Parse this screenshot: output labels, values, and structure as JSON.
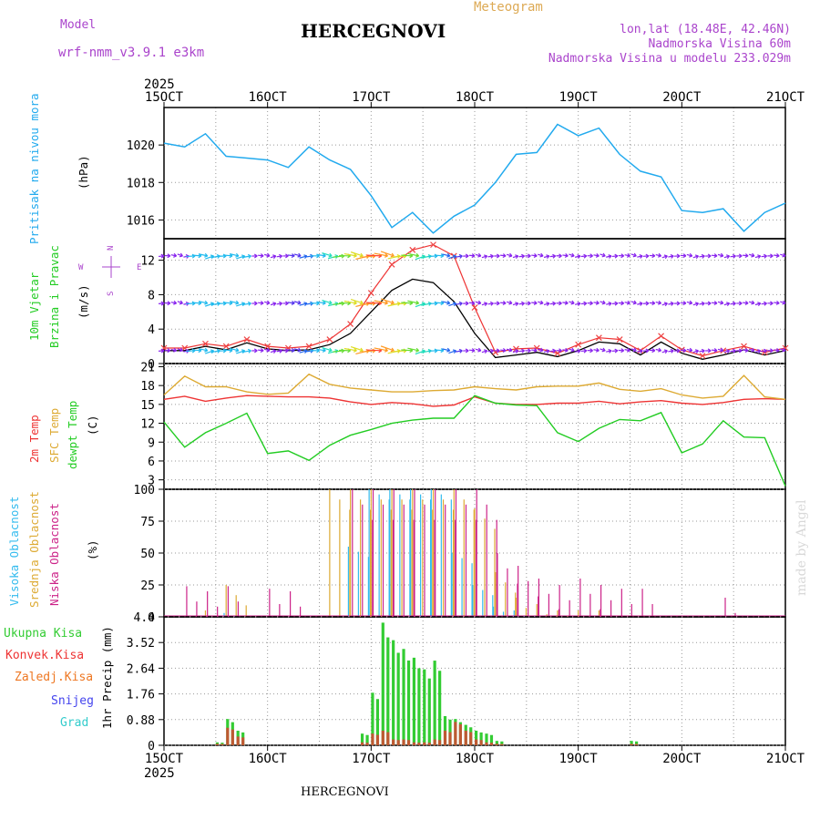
{
  "header": {
    "model_label": "Model",
    "model_name": "wrf-nmm_v3.9.1 e3km",
    "station_title": "HERCEGNOVI",
    "meteogram_label": "Meteogram",
    "lonlat": "lon,lat (18.48E, 42.46N)",
    "altitude": "Nadmorska Visina 60m",
    "model_altitude": "Nadmorska Visina u modelu 233.029m",
    "bottom_title": "HERCEGNOVI",
    "watermark": "made by Angel"
  },
  "colors": {
    "pressure": "#22aaee",
    "temp2m": "#ee3333",
    "sfc": "#ddaa33",
    "dew": "#22cc22",
    "high_cloud": "#33bbee",
    "mid_cloud": "#ddaa33",
    "low_cloud": "#cc2288",
    "total_precip": "#33cc33",
    "conv_precip": "#ee3333",
    "frozen": "#ee7722",
    "snow": "#4444ee",
    "hail": "#33cccc",
    "header_purple": "#aa44cc",
    "header_orange": "#ddaa55"
  },
  "chart_data": [
    {
      "type": "line",
      "panel": "pressure",
      "ylabel": "Pritisak na nivou mora",
      "unit": "(hPa)",
      "yticks": [
        1016,
        1018,
        1020
      ],
      "ylim": [
        1015,
        1022
      ],
      "x_days": [
        15,
        15.2,
        15.4,
        15.6,
        15.8,
        16,
        16.2,
        16.4,
        16.6,
        16.8,
        17,
        17.2,
        17.4,
        17.6,
        17.8,
        18,
        18.2,
        18.4,
        18.6,
        18.8,
        19,
        19.2,
        19.4,
        19.6,
        19.8,
        20,
        20.2,
        20.4,
        20.6,
        20.8,
        21
      ],
      "values": [
        1020.1,
        1019.9,
        1020.6,
        1019.4,
        1019.3,
        1019.2,
        1018.8,
        1019.9,
        1019.2,
        1018.7,
        1017.3,
        1015.6,
        1016.4,
        1015.3,
        1016.2,
        1016.8,
        1018.0,
        1019.5,
        1019.6,
        1021.1,
        1020.5,
        1020.9,
        1019.5,
        1018.6,
        1018.3,
        1016.5,
        1016.4,
        1016.6,
        1015.4,
        1016.4,
        1016.9
      ]
    },
    {
      "type": "line",
      "panel": "wind",
      "ylabel": "10m Vjetar",
      "ylabel2": "Brzina i Pravac",
      "unit": "(m/s)",
      "yticks": [
        0,
        4,
        8,
        12
      ],
      "ylim": [
        0,
        14.5
      ],
      "compass": {
        "n": "N",
        "w": "W",
        "e": "E",
        "s": "S"
      },
      "x_days": [
        15,
        15.2,
        15.4,
        15.6,
        15.8,
        16,
        16.2,
        16.4,
        16.6,
        16.8,
        17,
        17.2,
        17.4,
        17.6,
        17.8,
        18,
        18.2,
        18.4,
        18.6,
        18.8,
        19,
        19.2,
        19.4,
        19.6,
        19.8,
        20,
        20.2,
        20.4,
        20.6,
        20.8,
        21
      ],
      "series": [
        {
          "name": "wind speed",
          "values": [
            1.5,
            1.5,
            2.0,
            1.6,
            2.4,
            1.7,
            1.5,
            1.6,
            2.2,
            3.5,
            6.0,
            8.5,
            9.8,
            9.4,
            7.2,
            3.5,
            0.7,
            1.0,
            1.3,
            0.8,
            1.5,
            2.5,
            2.3,
            1.0,
            2.5,
            1.2,
            0.5,
            1.0,
            1.6,
            1.0,
            1.5
          ]
        },
        {
          "name": "wind gust",
          "values": [
            1.8,
            1.8,
            2.3,
            2.0,
            2.8,
            2.0,
            1.8,
            2.0,
            2.8,
            4.6,
            8.2,
            11.5,
            13.2,
            13.8,
            12.5,
            6.5,
            1.3,
            1.7,
            1.8,
            1.2,
            2.2,
            3.0,
            2.8,
            1.5,
            3.2,
            1.6,
            0.9,
            1.5,
            2.0,
            1.3,
            1.8
          ]
        }
      ]
    },
    {
      "type": "line",
      "panel": "temperature",
      "ylabels": [
        "2m Temp",
        "SFC Temp",
        "dewpt Temp"
      ],
      "unit": "(C)",
      "yticks": [
        3,
        6,
        9,
        12,
        15,
        18,
        21
      ],
      "ylim": [
        1.5,
        21.5
      ],
      "x_days": [
        15,
        15.2,
        15.4,
        15.6,
        15.8,
        16,
        16.2,
        16.4,
        16.6,
        16.8,
        17,
        17.2,
        17.4,
        17.6,
        17.8,
        18,
        18.2,
        18.4,
        18.6,
        18.8,
        19,
        19.2,
        19.4,
        19.6,
        19.8,
        20,
        20.2,
        20.4,
        20.6,
        20.8,
        21
      ],
      "series": [
        {
          "name": "2m Temp",
          "values": [
            15.8,
            16.3,
            15.5,
            16.0,
            16.4,
            16.3,
            16.2,
            16.2,
            16.0,
            15.4,
            15.0,
            15.3,
            15.1,
            14.7,
            14.9,
            16.2,
            15.2,
            15.0,
            15.0,
            15.2,
            15.2,
            15.5,
            15.1,
            15.4,
            15.6,
            15.2,
            15.0,
            15.3,
            15.8,
            15.9,
            15.8
          ]
        },
        {
          "name": "SFC Temp",
          "values": [
            16.5,
            19.5,
            17.8,
            17.8,
            17.0,
            16.6,
            16.8,
            19.8,
            18.2,
            17.6,
            17.3,
            17.0,
            17.0,
            17.2,
            17.3,
            17.8,
            17.5,
            17.3,
            17.8,
            17.9,
            17.9,
            18.4,
            17.4,
            17.1,
            17.5,
            16.5,
            16.0,
            16.3,
            19.6,
            16.2,
            15.8
          ]
        },
        {
          "name": "dewpt Temp",
          "values": [
            12.2,
            8.2,
            10.5,
            12.0,
            13.6,
            7.2,
            7.6,
            6.1,
            8.5,
            10.1,
            11.0,
            12.0,
            12.5,
            12.8,
            12.8,
            16.4,
            15.2,
            14.9,
            14.8,
            10.5,
            9.1,
            11.2,
            12.6,
            12.4,
            13.7,
            7.3,
            8.7,
            12.4,
            9.8,
            9.7,
            2.0
          ]
        }
      ]
    },
    {
      "type": "bar",
      "panel": "clouds",
      "ylabels": [
        "Visoka Oblacnost",
        "Srednja Oblacnost",
        "Niska Oblacnost"
      ],
      "unit": "(%)",
      "yticks": [
        0,
        25,
        50,
        75,
        100
      ],
      "ylim": [
        0,
        100
      ],
      "x_days": [
        15.2,
        15.4,
        15.6,
        15.8,
        16,
        16.2,
        16.4,
        16.6,
        16.8,
        17,
        17.2,
        17.4,
        17.6,
        17.8,
        18,
        18.2,
        18.4,
        18.6,
        18.8,
        19,
        19.2,
        19.4,
        19.6,
        19.8,
        20,
        20.2,
        20.4,
        20.6
      ],
      "series": [
        {
          "name": "Visoka Oblacnost",
          "values": [
            0,
            0,
            3,
            0,
            0,
            0,
            0,
            0,
            55,
            100,
            100,
            100,
            100,
            50,
            25,
            8,
            5,
            0,
            0,
            0,
            0,
            0,
            0,
            0,
            0,
            0,
            0,
            0
          ]
        },
        {
          "name": "Srednja Oblacnost",
          "values": [
            0,
            5,
            25,
            0,
            0,
            0,
            0,
            100,
            100,
            100,
            100,
            100,
            100,
            100,
            85,
            35,
            15,
            10,
            5,
            5,
            5,
            0,
            0,
            0,
            0,
            0,
            0,
            0
          ]
        },
        {
          "name": "Niska Oblacnost",
          "values": [
            24,
            20,
            24,
            0,
            22,
            20,
            0,
            0,
            100,
            100,
            100,
            100,
            100,
            100,
            100,
            50,
            40,
            30,
            25,
            30,
            25,
            22,
            22,
            0,
            0,
            0,
            15,
            0
          ]
        }
      ]
    },
    {
      "type": "bar",
      "panel": "precip",
      "ylabels": [
        "Ukupna Kisa",
        "Konvek.Kisa",
        "Zaledj.Kisa",
        "Snijeg",
        "Grad"
      ],
      "unit": "1hr Precip (mm)",
      "yticks": [
        0,
        0.88,
        1.76,
        2.64,
        3.52,
        4.4
      ],
      "ylim": [
        0,
        4.4
      ],
      "x_days": [
        15.5,
        15.6,
        15.7,
        16.9,
        17.0,
        17.1,
        17.2,
        17.3,
        17.4,
        17.5,
        17.6,
        17.7,
        17.8,
        17.9,
        18.0,
        18.1,
        18.2,
        19.5
      ],
      "series": [
        {
          "name": "Ukupna Kisa",
          "values": [
            0.1,
            0.9,
            0.5,
            0.4,
            1.8,
            4.2,
            3.6,
            3.3,
            3.0,
            2.6,
            2.9,
            1.0,
            0.9,
            0.7,
            0.5,
            0.4,
            0.15,
            0.15
          ]
        },
        {
          "name": "Konvek.Kisa",
          "values": [
            0.05,
            0.6,
            0.3,
            0.1,
            0.4,
            0.5,
            0.2,
            0.2,
            0.1,
            0.1,
            0.2,
            0.5,
            0.8,
            0.5,
            0.2,
            0.1,
            0.05,
            0.05
          ]
        }
      ]
    }
  ],
  "axis": {
    "year": "2025",
    "x_ticks": [
      "15OCT",
      "16OCT",
      "17OCT",
      "18OCT",
      "19OCT",
      "20OCT",
      "21OCT"
    ],
    "x_tick_days": [
      15,
      16,
      17,
      18,
      19,
      20,
      21
    ]
  }
}
